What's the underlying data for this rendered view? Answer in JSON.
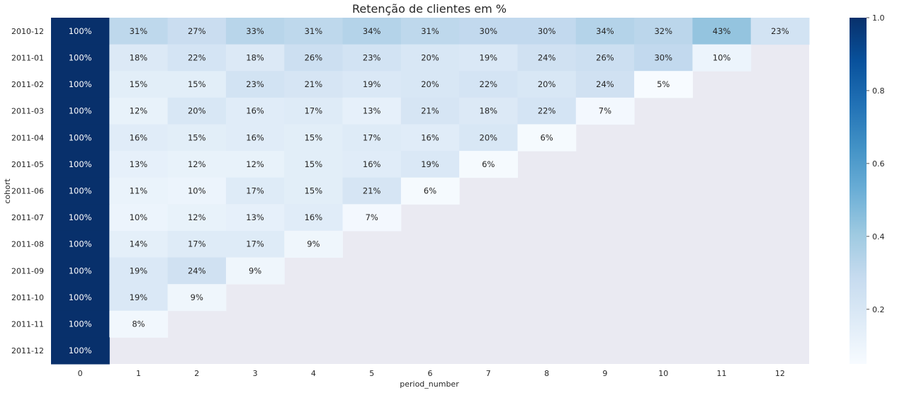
{
  "chart_data": {
    "type": "heatmap",
    "title": "Retenção de clientes em %",
    "xlabel": "period_number",
    "ylabel": "cohort",
    "x": [
      "0",
      "1",
      "2",
      "3",
      "4",
      "5",
      "6",
      "7",
      "8",
      "9",
      "10",
      "11",
      "12"
    ],
    "y": [
      "2010-12",
      "2011-01",
      "2011-02",
      "2011-03",
      "2011-04",
      "2011-05",
      "2011-06",
      "2011-07",
      "2011-08",
      "2011-09",
      "2011-10",
      "2011-11",
      "2011-12"
    ],
    "values": [
      [
        1.0,
        0.31,
        0.27,
        0.33,
        0.31,
        0.34,
        0.31,
        0.3,
        0.3,
        0.34,
        0.32,
        0.43,
        0.23
      ],
      [
        1.0,
        0.18,
        0.22,
        0.18,
        0.26,
        0.23,
        0.2,
        0.19,
        0.24,
        0.26,
        0.3,
        0.1,
        null
      ],
      [
        1.0,
        0.15,
        0.15,
        0.23,
        0.21,
        0.19,
        0.2,
        0.22,
        0.2,
        0.24,
        0.05,
        null,
        null
      ],
      [
        1.0,
        0.12,
        0.2,
        0.16,
        0.17,
        0.13,
        0.21,
        0.18,
        0.22,
        0.07,
        null,
        null,
        null
      ],
      [
        1.0,
        0.16,
        0.15,
        0.16,
        0.15,
        0.17,
        0.16,
        0.2,
        0.06,
        null,
        null,
        null,
        null
      ],
      [
        1.0,
        0.13,
        0.12,
        0.12,
        0.15,
        0.16,
        0.19,
        0.06,
        null,
        null,
        null,
        null,
        null
      ],
      [
        1.0,
        0.11,
        0.1,
        0.17,
        0.15,
        0.21,
        0.06,
        null,
        null,
        null,
        null,
        null,
        null
      ],
      [
        1.0,
        0.1,
        0.12,
        0.13,
        0.16,
        0.07,
        null,
        null,
        null,
        null,
        null,
        null,
        null
      ],
      [
        1.0,
        0.14,
        0.17,
        0.17,
        0.09,
        null,
        null,
        null,
        null,
        null,
        null,
        null,
        null
      ],
      [
        1.0,
        0.19,
        0.24,
        0.09,
        null,
        null,
        null,
        null,
        null,
        null,
        null,
        null,
        null
      ],
      [
        1.0,
        0.19,
        0.09,
        null,
        null,
        null,
        null,
        null,
        null,
        null,
        null,
        null,
        null
      ],
      [
        1.0,
        0.08,
        null,
        null,
        null,
        null,
        null,
        null,
        null,
        null,
        null,
        null,
        null
      ],
      [
        1.0,
        null,
        null,
        null,
        null,
        null,
        null,
        null,
        null,
        null,
        null,
        null,
        null
      ]
    ],
    "labels": [
      [
        "100%",
        "31%",
        "27%",
        "33%",
        "31%",
        "34%",
        "31%",
        "30%",
        "30%",
        "34%",
        "32%",
        "43%",
        "23%"
      ],
      [
        "100%",
        "18%",
        "22%",
        "18%",
        "26%",
        "23%",
        "20%",
        "19%",
        "24%",
        "26%",
        "30%",
        "10%",
        ""
      ],
      [
        "100%",
        "15%",
        "15%",
        "23%",
        "21%",
        "19%",
        "20%",
        "22%",
        "20%",
        "24%",
        "5%",
        "",
        ""
      ],
      [
        "100%",
        "12%",
        "20%",
        "16%",
        "17%",
        "13%",
        "21%",
        "18%",
        "22%",
        "7%",
        "",
        "",
        ""
      ],
      [
        "100%",
        "16%",
        "15%",
        "16%",
        "15%",
        "17%",
        "16%",
        "20%",
        "6%",
        "",
        "",
        "",
        ""
      ],
      [
        "100%",
        "13%",
        "12%",
        "12%",
        "15%",
        "16%",
        "19%",
        "6%",
        "",
        "",
        "",
        "",
        ""
      ],
      [
        "100%",
        "11%",
        "10%",
        "17%",
        "15%",
        "21%",
        "6%",
        "",
        "",
        "",
        "",
        "",
        ""
      ],
      [
        "100%",
        "10%",
        "12%",
        "13%",
        "16%",
        "7%",
        "",
        "",
        "",
        "",
        "",
        "",
        ""
      ],
      [
        "100%",
        "14%",
        "17%",
        "17%",
        "9%",
        "",
        "",
        "",
        "",
        "",
        "",
        "",
        ""
      ],
      [
        "100%",
        "19%",
        "24%",
        "9%",
        "",
        "",
        "",
        "",
        "",
        "",
        "",
        "",
        ""
      ],
      [
        "100%",
        "19%",
        "9%",
        "",
        "",
        "",
        "",
        "",
        "",
        "",
        "",
        "",
        ""
      ],
      [
        "100%",
        "8%",
        "",
        "",
        "",
        "",
        "",
        "",
        "",
        "",
        "",
        "",
        ""
      ],
      [
        "100%",
        "",
        "",
        "",
        "",
        "",
        "",
        "",
        "",
        "",
        "",
        "",
        ""
      ]
    ],
    "colormap": "Blues",
    "vmin": 0.05,
    "vmax": 1.0,
    "colorbar_ticks": [
      0.2,
      0.4,
      0.6,
      0.8,
      1.0
    ],
    "colorbar_tick_labels": [
      "0.2",
      "0.4",
      "0.6",
      "0.8",
      "1.0"
    ],
    "missing_color": "#eaeaf2"
  }
}
